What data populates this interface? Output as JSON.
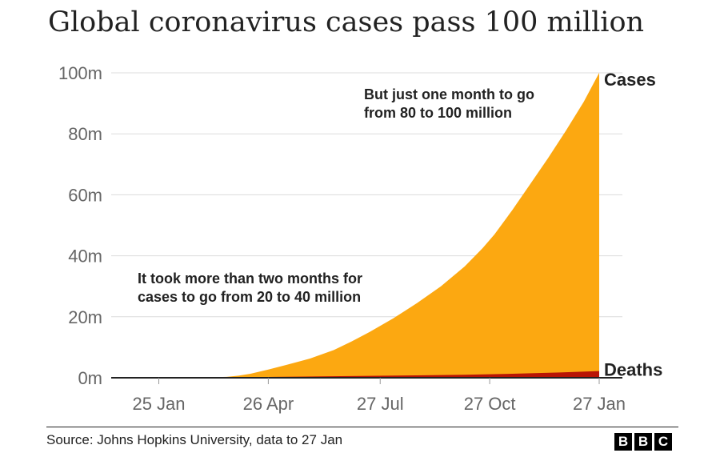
{
  "chart_data": {
    "type": "area",
    "title": "Global coronavirus cases pass 100 million",
    "xlabel": "",
    "ylabel": "",
    "ylim": [
      0,
      100
    ],
    "y_unit": "m",
    "ytick_values": [
      0,
      20,
      40,
      60,
      80,
      100
    ],
    "ytick_labels": [
      "0m",
      "20m",
      "40m",
      "60m",
      "80m",
      "100m"
    ],
    "xtick_days": [
      3,
      95,
      189,
      281,
      373
    ],
    "xtick_labels": [
      "25 Jan",
      "26 Apr",
      "27 Jul",
      "27 Oct",
      "27 Jan"
    ],
    "x_range_days": [
      -37,
      373
    ],
    "series": [
      {
        "name": "Cases",
        "color": "#fca811",
        "x": [
          -37,
          0,
          40,
          60,
          70,
          80,
          95,
          110,
          130,
          150,
          165,
          180,
          200,
          220,
          240,
          260,
          275,
          285,
          300,
          315,
          330,
          345,
          360,
          373
        ],
        "values": [
          0,
          0,
          0.1,
          0.3,
          0.7,
          1.3,
          2.7,
          4.2,
          6.3,
          9.1,
          11.9,
          15.0,
          19.5,
          24.5,
          30.0,
          36.5,
          42.5,
          47.0,
          55.0,
          63.5,
          72.0,
          81.0,
          90.5,
          100.0
        ]
      },
      {
        "name": "Deaths",
        "color": "#b81505",
        "x": [
          -37,
          0,
          40,
          60,
          80,
          100,
          140,
          180,
          220,
          260,
          300,
          340,
          373
        ],
        "values": [
          0,
          0,
          0.01,
          0.07,
          0.17,
          0.28,
          0.45,
          0.62,
          0.8,
          1.0,
          1.3,
          1.75,
          2.2
        ]
      }
    ],
    "end_labels": [
      "Cases",
      "Deaths"
    ],
    "annotations": [
      {
        "lines": [
          "But just one month to go",
          "from 80 to 100 million"
        ],
        "target_day": 345,
        "target_value": 88
      },
      {
        "lines": [
          "It took more than two months for",
          "cases to go from 20 to 40 million"
        ],
        "target_day": 200,
        "target_value": 29
      }
    ],
    "grid": true
  },
  "footer": {
    "source": "Source: Johns Hopkins University, data to 27 Jan",
    "logo_letters": [
      "B",
      "B",
      "C"
    ]
  }
}
